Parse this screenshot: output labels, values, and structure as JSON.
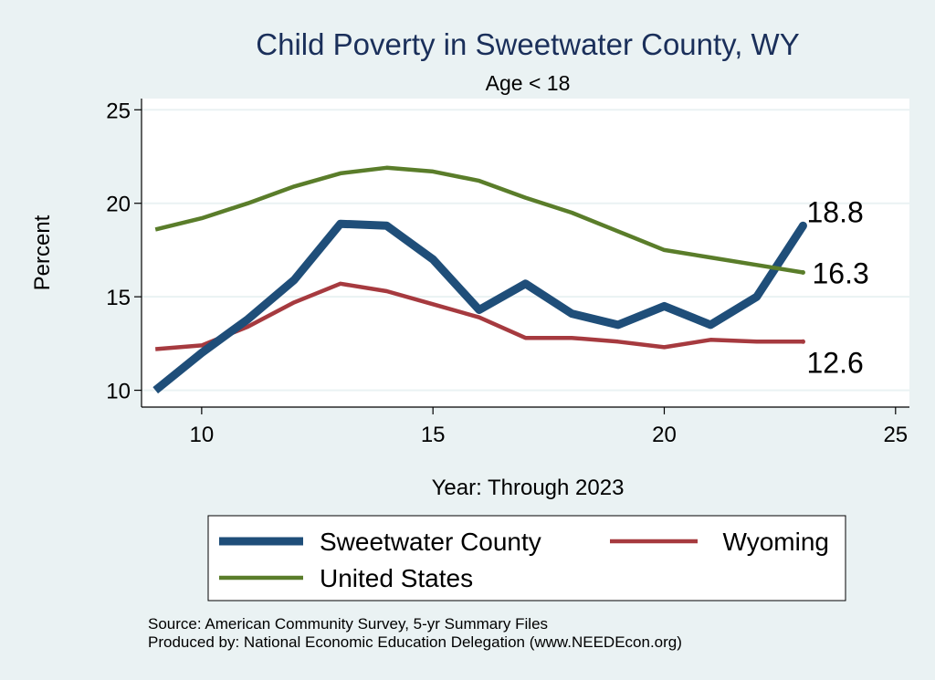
{
  "chart_data": {
    "type": "line",
    "title": "Child Poverty in Sweetwater County, WY",
    "subtitle": "Age < 18",
    "xlabel": "Year: Through 2023",
    "ylabel": "Percent",
    "xlim": [
      8.7,
      25.3
    ],
    "ylim": [
      9.1,
      25.6
    ],
    "xticks": [
      10,
      15,
      20,
      25
    ],
    "yticks": [
      10,
      15,
      20,
      25
    ],
    "grid": true,
    "legend_position": "bottom",
    "x": [
      9,
      10,
      11,
      12,
      13,
      14,
      15,
      16,
      17,
      18,
      19,
      20,
      21,
      22,
      23
    ],
    "series": [
      {
        "name": "Sweetwater County",
        "color": "#1f4e79",
        "values": [
          10.0,
          12.0,
          13.8,
          15.9,
          18.9,
          18.8,
          17.0,
          14.3,
          15.7,
          14.1,
          13.5,
          14.5,
          13.5,
          15.0,
          18.8
        ],
        "end_label": "18.8"
      },
      {
        "name": "Wyoming",
        "color": "#a63a3f",
        "values": [
          12.2,
          12.4,
          13.4,
          14.7,
          15.7,
          15.3,
          14.6,
          13.9,
          12.8,
          12.8,
          12.6,
          12.3,
          12.7,
          12.6,
          12.6
        ],
        "end_label": "12.6"
      },
      {
        "name": "United States",
        "color": "#5a7d2a",
        "values": [
          18.6,
          19.2,
          20.0,
          20.9,
          21.6,
          21.9,
          21.7,
          21.2,
          20.3,
          19.5,
          18.5,
          17.5,
          17.1,
          16.7,
          16.3
        ],
        "end_label": "16.3"
      }
    ],
    "notes": [
      "Source: American Community Survey, 5-yr Summary Files",
      "Produced by: National Economic Education Delegation (www.NEEDEcon.org)"
    ]
  }
}
